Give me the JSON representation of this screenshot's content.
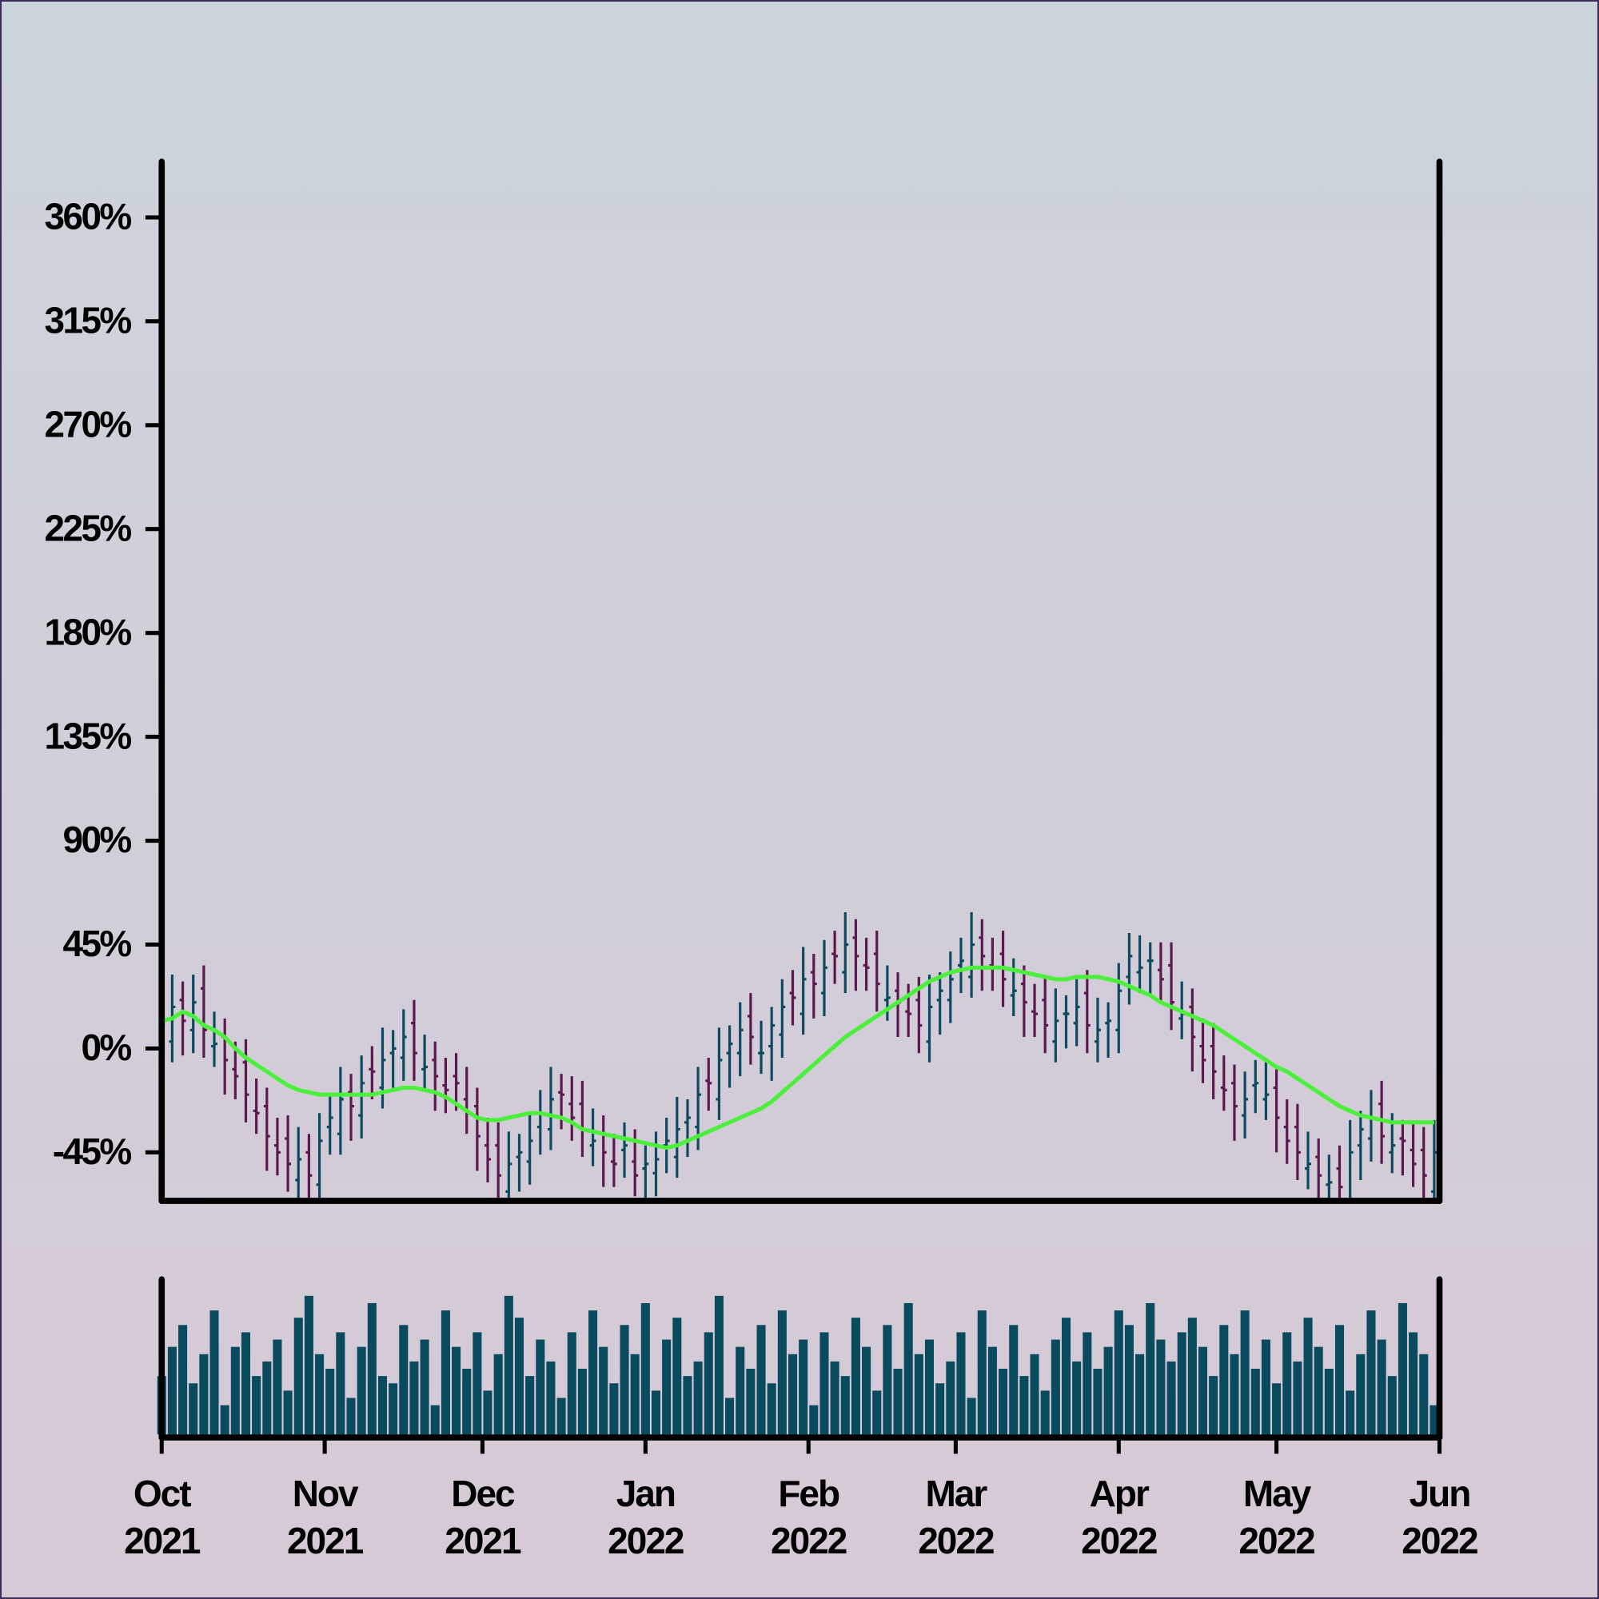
{
  "chart_data": {
    "type": "ohlc",
    "x": [
      0,
      2,
      4,
      6,
      8,
      10,
      12,
      14,
      16,
      18,
      20,
      22,
      24,
      26,
      28,
      30,
      32,
      34,
      36,
      38,
      40,
      42,
      44,
      46,
      48,
      50,
      52,
      54,
      56,
      58,
      60,
      62,
      64,
      66,
      68,
      70,
      72,
      74,
      76,
      78,
      80,
      82,
      84,
      86,
      88,
      90,
      92,
      94,
      96,
      98,
      100,
      102,
      104,
      106,
      108,
      110,
      112,
      114,
      116,
      118,
      120,
      122,
      124,
      126,
      128,
      130,
      132,
      134,
      136,
      138,
      140,
      142,
      144,
      146,
      148,
      150,
      152,
      154,
      156,
      158,
      160,
      162,
      164,
      166,
      168,
      170,
      172,
      174,
      176,
      178,
      180,
      182,
      184,
      186,
      188,
      190,
      192,
      194,
      196,
      198,
      200,
      202,
      204,
      206,
      208,
      210,
      212,
      214,
      216,
      218,
      220,
      222,
      224,
      226,
      228,
      230,
      232,
      234,
      236,
      238,
      240,
      242
    ],
    "open": [
      4,
      3,
      21,
      8,
      26,
      1,
      5,
      -9,
      -6,
      -27,
      -25,
      -42,
      -39,
      -57,
      -45,
      -59,
      -34,
      -37,
      -19,
      -29,
      -9,
      -17,
      -2,
      -4,
      11,
      -9,
      -5,
      -16,
      -12,
      -22,
      -25,
      -42,
      -42,
      -62,
      -47,
      -49,
      -34,
      -35,
      -19,
      -24,
      -24,
      -42,
      -37,
      -49,
      -44,
      -49,
      -52,
      -54,
      -42,
      -47,
      -32,
      -34,
      -14,
      -22,
      -2,
      -2,
      14,
      -2,
      1,
      6,
      24,
      15,
      33,
      24,
      41,
      33,
      48,
      36,
      41,
      21,
      25,
      16,
      21,
      3,
      21,
      21,
      36,
      31,
      48,
      36,
      41,
      23,
      28,
      16,
      21,
      3,
      15,
      11,
      24,
      3,
      11,
      8,
      31,
      33,
      38,
      34,
      36,
      13,
      18,
      1,
      1,
      -17,
      -15,
      -29,
      -16,
      -22,
      -17,
      -34,
      -34,
      -52,
      -47,
      -59,
      -52,
      -67,
      -42,
      -39,
      -24,
      -45,
      -39,
      -44,
      -44,
      -62
    ],
    "high": [
      20,
      32,
      29,
      32,
      36,
      16,
      13,
      3,
      4,
      -13,
      -17,
      -30,
      -29,
      -34,
      -37,
      -28,
      -20,
      -8,
      -11,
      -3,
      1,
      9,
      8,
      17,
      21,
      6,
      3,
      -4,
      -2,
      -8,
      -17,
      -30,
      -32,
      -36,
      -37,
      -28,
      -18,
      -8,
      -11,
      -12,
      -14,
      -26,
      -29,
      -37,
      -32,
      -35,
      -42,
      -36,
      -30,
      -21,
      -22,
      -8,
      -4,
      9,
      10,
      20,
      24,
      12,
      18,
      30,
      34,
      44,
      41,
      47,
      51,
      59,
      56,
      48,
      51,
      36,
      33,
      28,
      31,
      32,
      33,
      42,
      48,
      59,
      56,
      48,
      51,
      39,
      36,
      28,
      31,
      26,
      23,
      30,
      34,
      22,
      20,
      37,
      50,
      49,
      46,
      46,
      46,
      29,
      26,
      13,
      11,
      -3,
      -7,
      -10,
      -5,
      -6,
      -9,
      -22,
      -24,
      -36,
      -39,
      -46,
      -42,
      -31,
      -27,
      -18,
      -14,
      -28,
      -31,
      -32,
      -34,
      -31
    ],
    "low": [
      -8,
      -6,
      -3,
      -2,
      -4,
      -8,
      -20,
      -22,
      -32,
      -37,
      -53,
      -55,
      -62,
      -66,
      -70,
      -69,
      -46,
      -46,
      -40,
      -39,
      -22,
      -26,
      -17,
      -14,
      -14,
      -18,
      -27,
      -28,
      -27,
      -37,
      -53,
      -58,
      -67,
      -71,
      -62,
      -59,
      -46,
      -44,
      -35,
      -40,
      -47,
      -51,
      -60,
      -60,
      -56,
      -64,
      -67,
      -64,
      -54,
      -56,
      -47,
      -44,
      -27,
      -31,
      -17,
      -12,
      -7,
      -11,
      -14,
      -4,
      10,
      6,
      13,
      14,
      28,
      24,
      25,
      25,
      16,
      12,
      5,
      5,
      -2,
      -6,
      6,
      11,
      24,
      22,
      25,
      25,
      18,
      14,
      5,
      5,
      -2,
      -6,
      0,
      1,
      -2,
      -6,
      -4,
      -2,
      19,
      24,
      23,
      20,
      8,
      4,
      -10,
      -15,
      -22,
      -27,
      -40,
      -39,
      -28,
      -31,
      -45,
      -50,
      -57,
      -61,
      -70,
      -69,
      -72,
      -76,
      -57,
      -49,
      -50,
      -54,
      -55,
      -60,
      -67,
      -71
    ],
    "close": [
      10,
      18,
      12,
      20,
      8,
      2,
      -5,
      -12,
      -20,
      -28,
      -38,
      -45,
      -50,
      -48,
      -55,
      -40,
      -30,
      -22,
      -25,
      -15,
      -10,
      -5,
      0,
      5,
      -2,
      -8,
      -12,
      -18,
      -15,
      -28,
      -38,
      -48,
      -55,
      -50,
      -45,
      -40,
      -28,
      -22,
      -20,
      -30,
      -35,
      -40,
      -45,
      -50,
      -42,
      -55,
      -50,
      -48,
      -40,
      -35,
      -30,
      -20,
      -15,
      -5,
      2,
      8,
      5,
      -2,
      10,
      18,
      22,
      30,
      28,
      35,
      40,
      45,
      40,
      35,
      28,
      22,
      20,
      15,
      10,
      18,
      25,
      30,
      38,
      45,
      40,
      35,
      30,
      25,
      20,
      15,
      10,
      12,
      15,
      18,
      10,
      8,
      12,
      25,
      40,
      35,
      38,
      30,
      20,
      15,
      5,
      -5,
      -10,
      -18,
      -25,
      -22,
      -15,
      -20,
      -30,
      -40,
      -45,
      -50,
      -55,
      -58,
      -60,
      -45,
      -35,
      -30,
      -38,
      -42,
      -40,
      -50,
      -55,
      -45
    ],
    "ma": [
      12,
      13,
      16,
      14,
      10,
      8,
      5,
      0,
      -4,
      -7,
      -10,
      -13,
      -16,
      -18,
      -19,
      -20,
      -20,
      -20,
      -20,
      -20,
      -20,
      -19,
      -18,
      -17,
      -17,
      -18,
      -19,
      -21,
      -24,
      -27,
      -30,
      -31,
      -31,
      -30,
      -29,
      -28,
      -28,
      -29,
      -30,
      -32,
      -35,
      -36,
      -37,
      -38,
      -39,
      -40,
      -41,
      -42,
      -43,
      -42,
      -40,
      -38,
      -36,
      -34,
      -32,
      -30,
      -28,
      -26,
      -23,
      -19,
      -15,
      -11,
      -7,
      -3,
      1,
      5,
      8,
      11,
      14,
      17,
      20,
      23,
      26,
      29,
      31,
      33,
      34,
      35,
      35,
      35,
      35,
      34,
      33,
      32,
      31,
      30,
      30,
      31,
      31,
      31,
      30,
      29,
      27,
      25,
      23,
      20,
      18,
      16,
      14,
      12,
      10,
      7,
      4,
      1,
      -2,
      -5,
      -8,
      -10,
      -13,
      -16,
      -19,
      -22,
      -25,
      -27,
      -29,
      -30,
      -31,
      -32,
      -32,
      -32,
      -32,
      -32
    ],
    "volume": [
      40,
      60,
      75,
      35,
      55,
      85,
      20,
      60,
      70,
      40,
      50,
      65,
      30,
      80,
      95,
      55,
      45,
      70,
      25,
      60,
      90,
      40,
      35,
      75,
      50,
      65,
      20,
      85,
      60,
      45,
      70,
      30,
      55,
      95,
      80,
      40,
      65,
      50,
      25,
      70,
      45,
      85,
      60,
      35,
      75,
      55,
      90,
      30,
      65,
      80,
      40,
      50,
      70,
      95,
      25,
      60,
      45,
      75,
      35,
      85,
      55,
      65,
      20,
      70,
      50,
      40,
      80,
      60,
      30,
      75,
      45,
      90,
      55,
      65,
      35,
      50,
      70,
      25,
      85,
      60,
      45,
      75,
      40,
      55,
      30,
      65,
      80,
      50,
      70,
      45,
      60,
      85,
      75,
      55,
      90,
      65,
      50,
      70,
      80,
      60,
      40,
      75,
      55,
      85,
      45,
      65,
      35,
      70,
      50,
      80,
      60,
      45,
      75,
      30,
      55,
      85,
      65,
      40,
      90,
      70,
      55,
      20
    ],
    "volume_ylim": [
      0,
      100
    ],
    "up_color": "#0d4a60",
    "down_color": "#5c1850",
    "ma_color": "#4cf03c",
    "volume_color": "#0a4a5e",
    "xlim": [
      0,
      243
    ],
    "xticks": [
      {
        "value": 0,
        "label": "Oct\n2021"
      },
      {
        "value": 31,
        "label": "Nov\n2021"
      },
      {
        "value": 61,
        "label": "Dec\n2021"
      },
      {
        "value": 92,
        "label": "Jan\n2022"
      },
      {
        "value": 123,
        "label": "Feb\n2022"
      },
      {
        "value": 151,
        "label": "Mar\n2022"
      },
      {
        "value": 182,
        "label": "Apr\n2022"
      },
      {
        "value": 212,
        "label": "May\n2022"
      },
      {
        "value": 243,
        "label": "Jun\n2022"
      }
    ],
    "ylim": [
      -66,
      385
    ],
    "yticks": [
      {
        "value": -45,
        "label": "-45%"
      },
      {
        "value": 0,
        "label": "0%"
      },
      {
        "value": 45,
        "label": "45%"
      },
      {
        "value": 90,
        "label": "90%"
      },
      {
        "value": 135,
        "label": "135%"
      },
      {
        "value": 180,
        "label": "180%"
      },
      {
        "value": 225,
        "label": "225%"
      },
      {
        "value": 270,
        "label": "270%"
      },
      {
        "value": 315,
        "label": "315%"
      },
      {
        "value": 360,
        "label": "360%"
      }
    ]
  }
}
